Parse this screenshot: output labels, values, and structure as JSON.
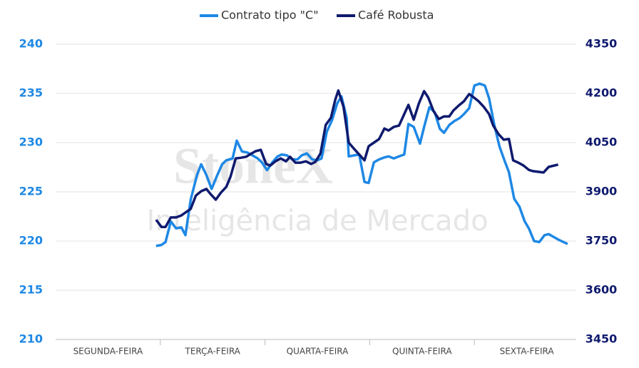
{
  "chart_data": {
    "type": "line",
    "categories": [
      "SEGUNDA-FEIRA",
      "TERÇA-FEIRA",
      "QUARTA-FEIRA",
      "QUINTA-FEIRA",
      "SEXTA-FEIRA"
    ],
    "xlim": [
      0,
      5
    ],
    "ylim": [
      210,
      240
    ],
    "yticks": [
      210,
      215,
      220,
      225,
      230,
      235,
      240
    ],
    "y2lim": [
      3450,
      4350
    ],
    "y2ticks": [
      3450,
      3600,
      3750,
      3900,
      4050,
      4200,
      4350
    ],
    "grid": true,
    "legend": "top",
    "annotations": [
      "StoneX",
      "Inteligência de Mercado"
    ],
    "series": [
      {
        "name": "Contrato tipo \"C\"",
        "color": "#1e88e5",
        "x": [
          0.96,
          1.01,
          1.05,
          1.1,
          1.15,
          1.2,
          1.24,
          1.29,
          1.35,
          1.39,
          1.44,
          1.49,
          1.54,
          1.59,
          1.63,
          1.69,
          1.73,
          1.78,
          1.83,
          1.88,
          1.93,
          1.97,
          2.02,
          2.07,
          2.12,
          2.16,
          2.21,
          2.26,
          2.31,
          2.35,
          2.4,
          2.45,
          2.5,
          2.54,
          2.59,
          2.64,
          2.69,
          2.73,
          2.78,
          2.8,
          2.85,
          2.9,
          2.95,
          2.99,
          3.04,
          3.09,
          3.14,
          3.18,
          3.23,
          3.28,
          3.33,
          3.37,
          3.42,
          3.48,
          3.52,
          3.57,
          3.62,
          3.67,
          3.71,
          3.76,
          3.81,
          3.86,
          3.9,
          3.95,
          4.0,
          4.05,
          4.1,
          4.14,
          4.19,
          4.24,
          4.29,
          4.33,
          4.38,
          4.43,
          4.48,
          4.52,
          4.57,
          4.62,
          4.67,
          4.71,
          4.76,
          4.81,
          4.89
        ],
        "values": [
          219.5,
          219.6,
          219.9,
          222.0,
          221.3,
          221.4,
          220.6,
          224.2,
          226.7,
          227.8,
          226.7,
          225.3,
          226.6,
          227.8,
          228.2,
          228.4,
          230.2,
          229.1,
          229.0,
          228.7,
          228.4,
          228.0,
          227.2,
          228.0,
          228.6,
          228.8,
          228.7,
          228.3,
          228.3,
          228.7,
          228.9,
          228.3,
          228.2,
          228.4,
          231.1,
          232.3,
          234.0,
          234.7,
          232.5,
          228.6,
          228.7,
          228.8,
          226.0,
          225.9,
          228.0,
          228.3,
          228.5,
          228.6,
          228.4,
          228.6,
          228.8,
          231.9,
          231.6,
          229.9,
          231.6,
          233.6,
          233.1,
          231.4,
          231.0,
          231.8,
          232.2,
          232.5,
          232.9,
          233.5,
          235.8,
          236.0,
          235.8,
          234.5,
          231.8,
          229.6,
          228.1,
          227.0,
          224.3,
          223.5,
          222.0,
          221.3,
          220.0,
          219.9,
          220.6,
          220.7,
          220.4,
          220.1,
          219.7
        ]
      },
      {
        "name": "Café Robusta",
        "color": "#0f1a6e",
        "axis": "y2",
        "x": [
          0.96,
          1.01,
          1.05,
          1.1,
          1.15,
          1.2,
          1.24,
          1.29,
          1.34,
          1.39,
          1.44,
          1.48,
          1.53,
          1.58,
          1.63,
          1.67,
          1.72,
          1.77,
          1.82,
          1.86,
          1.91,
          1.96,
          2.01,
          2.05,
          2.1,
          2.15,
          2.2,
          2.24,
          2.29,
          2.34,
          2.39,
          2.44,
          2.48,
          2.53,
          2.58,
          2.63,
          2.67,
          2.7,
          2.75,
          2.8,
          2.84,
          2.89,
          2.95,
          2.99,
          3.04,
          3.09,
          3.14,
          3.18,
          3.23,
          3.28,
          3.33,
          3.37,
          3.42,
          3.47,
          3.52,
          3.56,
          3.61,
          3.66,
          3.71,
          3.76,
          3.8,
          3.85,
          3.9,
          3.95,
          3.99,
          4.04,
          4.09,
          4.14,
          4.18,
          4.23,
          4.28,
          4.33,
          4.37,
          4.42,
          4.47,
          4.52,
          4.56,
          4.61,
          4.66,
          4.71,
          4.8
        ],
        "values": [
          3815,
          3793,
          3793,
          3822,
          3822,
          3828,
          3837,
          3848,
          3889,
          3902,
          3909,
          3893,
          3876,
          3898,
          3915,
          3946,
          4002,
          4004,
          4007,
          4015,
          4024,
          4028,
          3985,
          3980,
          3993,
          4002,
          3993,
          4007,
          3989,
          3989,
          3993,
          3985,
          3991,
          4017,
          4104,
          4126,
          4180,
          4209,
          4159,
          4050,
          4035,
          4017,
          3996,
          4039,
          4050,
          4061,
          4093,
          4087,
          4098,
          4102,
          4137,
          4165,
          4120,
          4170,
          4207,
          4187,
          4146,
          4122,
          4130,
          4130,
          4148,
          4163,
          4176,
          4198,
          4189,
          4176,
          4159,
          4137,
          4102,
          4076,
          4059,
          4061,
          3996,
          3989,
          3980,
          3967,
          3963,
          3961,
          3959,
          3976,
          3983
        ]
      }
    ]
  }
}
